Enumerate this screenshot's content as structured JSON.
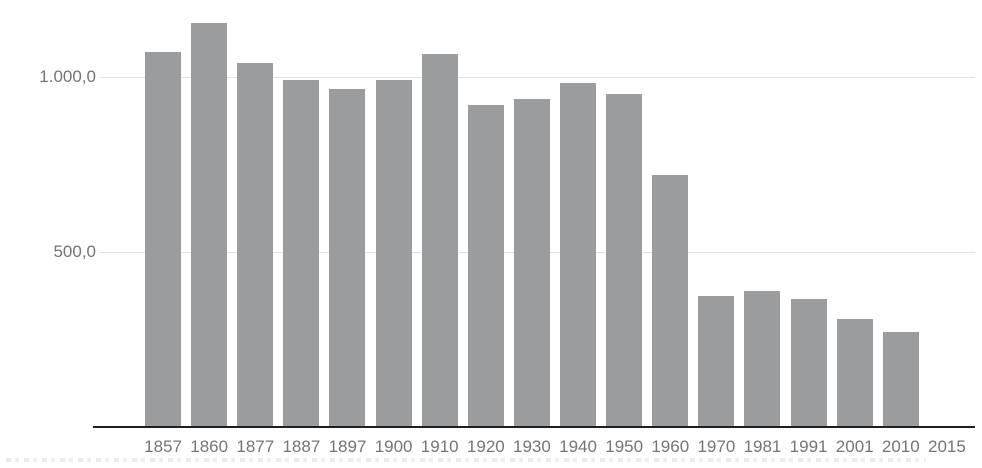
{
  "chart_data": {
    "type": "bar",
    "title": "",
    "xlabel": "",
    "ylabel": "",
    "categories": [
      "1857",
      "1860",
      "1877",
      "1887",
      "1897",
      "1900",
      "1910",
      "1920",
      "1930",
      "1940",
      "1950",
      "1960",
      "1970",
      "1981",
      "1991",
      "2001",
      "2010",
      "2015"
    ],
    "values": [
      1075,
      1158,
      1042,
      994,
      969,
      995,
      1069,
      923,
      941,
      985,
      955,
      722,
      375,
      390,
      367,
      310,
      272,
      0
    ],
    "ylim": [
      0,
      1224
    ],
    "grid": true,
    "legend_position": "none",
    "y_ticks": [
      {
        "label": "1.000,0",
        "value": 1000
      },
      {
        "label": "500,0",
        "value": 500
      }
    ],
    "colors": {
      "bar": "#9a9c9e",
      "gridline": "#e0e0e0",
      "axis_line": "#1f1f1f",
      "tick_label": "#757575",
      "background": "#ffffff"
    }
  }
}
